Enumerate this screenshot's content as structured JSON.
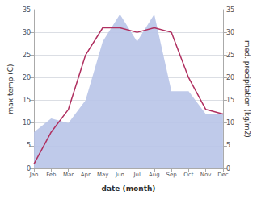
{
  "chart_data": {
    "type": "line",
    "xlabel": "date (month)",
    "ylabel": "max temp (C)",
    "y2label": "med. precipitation (kg/m2)",
    "categories": [
      "Jan",
      "Feb",
      "Mar",
      "Apr",
      "May",
      "Jun",
      "Jul",
      "Aug",
      "Sep",
      "Oct",
      "Nov",
      "Dec"
    ],
    "series": [
      {
        "type": "area",
        "axis": "y2",
        "color": "#b8c4e8",
        "values": [
          8,
          11,
          10,
          15,
          28,
          34,
          28,
          34,
          17,
          17,
          12,
          12
        ]
      },
      {
        "type": "line",
        "color": "#b03060",
        "values": [
          1,
          8,
          13,
          25,
          31,
          31,
          30,
          31,
          30,
          20,
          13,
          12
        ]
      }
    ],
    "ylim": [
      0,
      35
    ],
    "yticks": [
      0,
      5,
      10,
      15,
      20,
      25,
      30,
      35
    ],
    "y2lim": [
      0,
      35
    ],
    "y2ticks": [
      0,
      5,
      10,
      15,
      20,
      25,
      30,
      35
    ],
    "grid": true
  }
}
